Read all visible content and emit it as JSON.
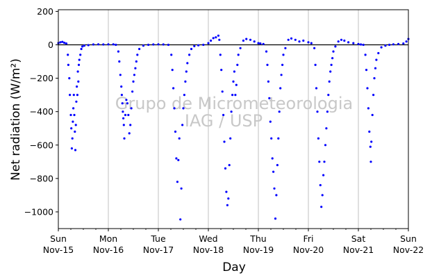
{
  "chart_data": {
    "type": "scatter",
    "xlabel": "Day",
    "ylabel": "Net radiation (W/m²)",
    "ylim": [
      -1100,
      210
    ],
    "xlim_days": [
      0,
      7
    ],
    "y_ticks": [
      200,
      0,
      -200,
      -400,
      -600,
      -800,
      -1000
    ],
    "x_ticks": [
      {
        "day": 0,
        "weekday": "Sun",
        "date": "Nov-15"
      },
      {
        "day": 1,
        "weekday": "Mon",
        "date": "Nov-16"
      },
      {
        "day": 2,
        "weekday": "Tue",
        "date": "Nov-17"
      },
      {
        "day": 3,
        "weekday": "Wed",
        "date": "Nov-18"
      },
      {
        "day": 4,
        "weekday": "Thu",
        "date": "Nov-19"
      },
      {
        "day": 5,
        "weekday": "Fri",
        "date": "Nov-20"
      },
      {
        "day": 6,
        "weekday": "Sat",
        "date": "Nov-21"
      },
      {
        "day": 7,
        "weekday": "Sun",
        "date": "Nov-22"
      }
    ],
    "grid": "vertical",
    "zero_line": true,
    "marker_color": "#0000ff",
    "watermark": [
      "Grupo de Micrometeorologia",
      "IAG / USP"
    ],
    "series": [
      {
        "points": [
          [
            0.0,
            10
          ],
          [
            0.04,
            15
          ],
          [
            0.08,
            18
          ],
          [
            0.12,
            12
          ],
          [
            0.16,
            8
          ],
          [
            0.19,
            -60
          ],
          [
            0.2,
            -120
          ],
          [
            0.22,
            -200
          ],
          [
            0.23,
            -300
          ],
          [
            0.25,
            -420
          ],
          [
            0.26,
            -500
          ],
          [
            0.27,
            -620
          ],
          [
            0.28,
            -560
          ],
          [
            0.29,
            -460
          ],
          [
            0.3,
            -380
          ],
          [
            0.31,
            -300
          ],
          [
            0.32,
            -420
          ],
          [
            0.33,
            -520
          ],
          [
            0.34,
            -630
          ],
          [
            0.35,
            -480
          ],
          [
            0.36,
            -340
          ],
          [
            0.37,
            -250
          ],
          [
            0.38,
            -300
          ],
          [
            0.39,
            -160
          ],
          [
            0.4,
            -220
          ],
          [
            0.41,
            -120
          ],
          [
            0.42,
            -90
          ],
          [
            0.44,
            -60
          ],
          [
            0.46,
            -25
          ],
          [
            0.48,
            -10
          ],
          [
            0.52,
            -5
          ],
          [
            0.6,
            -2
          ],
          [
            0.7,
            2
          ],
          [
            0.8,
            3
          ],
          [
            0.9,
            2
          ],
          [
            1.0,
            3
          ],
          [
            1.1,
            3
          ],
          [
            1.15,
            0
          ],
          [
            1.2,
            -40
          ],
          [
            1.22,
            -100
          ],
          [
            1.24,
            -180
          ],
          [
            1.26,
            -250
          ],
          [
            1.27,
            -300
          ],
          [
            1.28,
            -350
          ],
          [
            1.29,
            -400
          ],
          [
            1.3,
            -440
          ],
          [
            1.31,
            -480
          ],
          [
            1.32,
            -560
          ],
          [
            1.34,
            -420
          ],
          [
            1.36,
            -330
          ],
          [
            1.38,
            -350
          ],
          [
            1.4,
            -420
          ],
          [
            1.42,
            -530
          ],
          [
            1.44,
            -480
          ],
          [
            1.46,
            -380
          ],
          [
            1.48,
            -280
          ],
          [
            1.5,
            -220
          ],
          [
            1.52,
            -180
          ],
          [
            1.54,
            -140
          ],
          [
            1.56,
            -100
          ],
          [
            1.58,
            -60
          ],
          [
            1.62,
            -25
          ],
          [
            1.7,
            -5
          ],
          [
            1.8,
            0
          ],
          [
            1.9,
            2
          ],
          [
            2.0,
            3
          ],
          [
            2.1,
            2
          ],
          [
            2.2,
            0
          ],
          [
            2.26,
            -60
          ],
          [
            2.28,
            -150
          ],
          [
            2.3,
            -260
          ],
          [
            2.32,
            -380
          ],
          [
            2.34,
            -520
          ],
          [
            2.36,
            -680
          ],
          [
            2.38,
            -820
          ],
          [
            2.4,
            -690
          ],
          [
            2.42,
            -560
          ],
          [
            2.44,
            -1045
          ],
          [
            2.46,
            -860
          ],
          [
            2.48,
            -480
          ],
          [
            2.5,
            -380
          ],
          [
            2.52,
            -300
          ],
          [
            2.54,
            -220
          ],
          [
            2.56,
            -160
          ],
          [
            2.58,
            -110
          ],
          [
            2.62,
            -60
          ],
          [
            2.66,
            -25
          ],
          [
            2.72,
            -8
          ],
          [
            2.8,
            -3
          ],
          [
            2.9,
            0
          ],
          [
            3.0,
            10
          ],
          [
            3.05,
            25
          ],
          [
            3.1,
            40
          ],
          [
            3.15,
            45
          ],
          [
            3.2,
            55
          ],
          [
            3.22,
            30
          ],
          [
            3.24,
            -60
          ],
          [
            3.26,
            -150
          ],
          [
            3.28,
            -280
          ],
          [
            3.3,
            -420
          ],
          [
            3.32,
            -580
          ],
          [
            3.34,
            -740
          ],
          [
            3.36,
            -880
          ],
          [
            3.38,
            -960
          ],
          [
            3.4,
            -920
          ],
          [
            3.42,
            -720
          ],
          [
            3.44,
            -560
          ],
          [
            3.46,
            -400
          ],
          [
            3.48,
            -300
          ],
          [
            3.5,
            -220
          ],
          [
            3.52,
            -160
          ],
          [
            3.54,
            -300
          ],
          [
            3.56,
            -240
          ],
          [
            3.58,
            -120
          ],
          [
            3.6,
            -60
          ],
          [
            3.64,
            -20
          ],
          [
            3.7,
            25
          ],
          [
            3.76,
            35
          ],
          [
            3.84,
            30
          ],
          [
            3.92,
            20
          ],
          [
            4.0,
            10
          ],
          [
            4.04,
            8
          ],
          [
            4.1,
            5
          ],
          [
            4.16,
            -40
          ],
          [
            4.18,
            -120
          ],
          [
            4.2,
            -220
          ],
          [
            4.22,
            -320
          ],
          [
            4.24,
            -460
          ],
          [
            4.26,
            -560
          ],
          [
            4.28,
            -680
          ],
          [
            4.3,
            -760
          ],
          [
            4.32,
            -860
          ],
          [
            4.34,
            -1040
          ],
          [
            4.36,
            -900
          ],
          [
            4.38,
            -720
          ],
          [
            4.4,
            -560
          ],
          [
            4.42,
            -400
          ],
          [
            4.44,
            -260
          ],
          [
            4.46,
            -180
          ],
          [
            4.48,
            -120
          ],
          [
            4.5,
            -60
          ],
          [
            4.54,
            -20
          ],
          [
            4.6,
            30
          ],
          [
            4.66,
            38
          ],
          [
            4.74,
            30
          ],
          [
            4.82,
            20
          ],
          [
            4.9,
            25
          ],
          [
            5.0,
            15
          ],
          [
            5.06,
            10
          ],
          [
            5.12,
            -20
          ],
          [
            5.14,
            -120
          ],
          [
            5.16,
            -260
          ],
          [
            5.18,
            -400
          ],
          [
            5.2,
            -560
          ],
          [
            5.22,
            -700
          ],
          [
            5.24,
            -840
          ],
          [
            5.26,
            -970
          ],
          [
            5.28,
            -900
          ],
          [
            5.3,
            -780
          ],
          [
            5.32,
            -700
          ],
          [
            5.34,
            -600
          ],
          [
            5.36,
            -500
          ],
          [
            5.38,
            -400
          ],
          [
            5.4,
            -300
          ],
          [
            5.42,
            -220
          ],
          [
            5.44,
            -160
          ],
          [
            5.46,
            -120
          ],
          [
            5.48,
            -80
          ],
          [
            5.5,
            -40
          ],
          [
            5.54,
            -10
          ],
          [
            5.6,
            20
          ],
          [
            5.66,
            30
          ],
          [
            5.72,
            25
          ],
          [
            5.8,
            15
          ],
          [
            5.9,
            10
          ],
          [
            6.0,
            5
          ],
          [
            6.05,
            2
          ],
          [
            6.1,
            0
          ],
          [
            6.14,
            -60
          ],
          [
            6.16,
            -150
          ],
          [
            6.18,
            -260
          ],
          [
            6.2,
            -380
          ],
          [
            6.22,
            -520
          ],
          [
            6.24,
            -610
          ],
          [
            6.25,
            -700
          ],
          [
            6.26,
            -580
          ],
          [
            6.28,
            -420
          ],
          [
            6.3,
            -300
          ],
          [
            6.32,
            -200
          ],
          [
            6.34,
            -140
          ],
          [
            6.36,
            -90
          ],
          [
            6.4,
            -50
          ],
          [
            6.46,
            -15
          ],
          [
            6.54,
            -5
          ],
          [
            6.62,
            0
          ],
          [
            6.7,
            3
          ],
          [
            6.8,
            5
          ],
          [
            6.9,
            8
          ],
          [
            6.96,
            20
          ],
          [
            7.0,
            35
          ]
        ]
      }
    ]
  }
}
